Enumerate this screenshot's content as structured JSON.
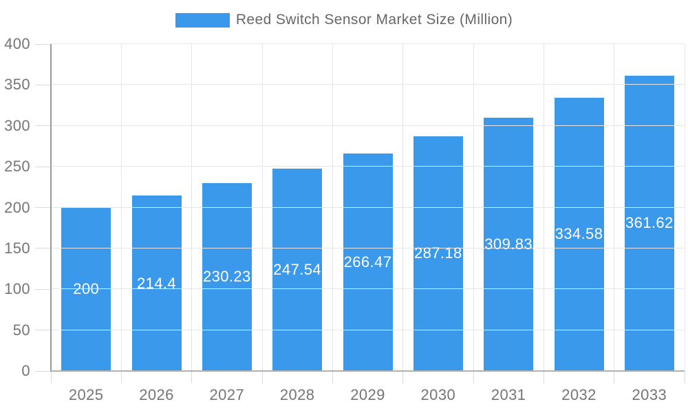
{
  "legend": {
    "label": "Reed Switch Sensor Market Size (Million)",
    "swatch_color": "#3B99EC"
  },
  "chart_data": {
    "type": "bar",
    "title": "Reed Switch Sensor Market Size (Million)",
    "categories": [
      "2025",
      "2026",
      "2027",
      "2028",
      "2029",
      "2030",
      "2031",
      "2032",
      "2033"
    ],
    "series": [
      {
        "name": "Reed Switch Sensor Market Size (Million)",
        "values": [
          200,
          214.4,
          230.23,
          247.54,
          266.47,
          287.18,
          309.83,
          334.58,
          361.62
        ]
      }
    ],
    "values": [
      200,
      214.4,
      230.23,
      247.54,
      266.47,
      287.18,
      309.83,
      334.58,
      361.62
    ],
    "bar_labels": [
      "200",
      "214.4",
      "230.23",
      "247.54",
      "266.47",
      "287.18",
      "309.83",
      "334.58",
      "361.62"
    ],
    "xlabel": "",
    "ylabel": "",
    "ylim": [
      0,
      400
    ],
    "yticks": [
      0,
      50,
      100,
      150,
      200,
      250,
      300,
      350,
      400
    ],
    "grid": true,
    "legend_position": "top",
    "bar_color": "#3B99EC",
    "bar_label_color": "#FFFFFF"
  },
  "colors": {
    "background": "#FFFFFF",
    "bar": "#3B99EC",
    "grid_line": "#E6E6E6",
    "x_axis_line": "#B0B0B0",
    "y_axis_line": "#999999",
    "tick_line": "#D9D9D9",
    "axis_label": "#757575",
    "legend_text": "#666666",
    "bar_label": "#FFFFFF"
  }
}
